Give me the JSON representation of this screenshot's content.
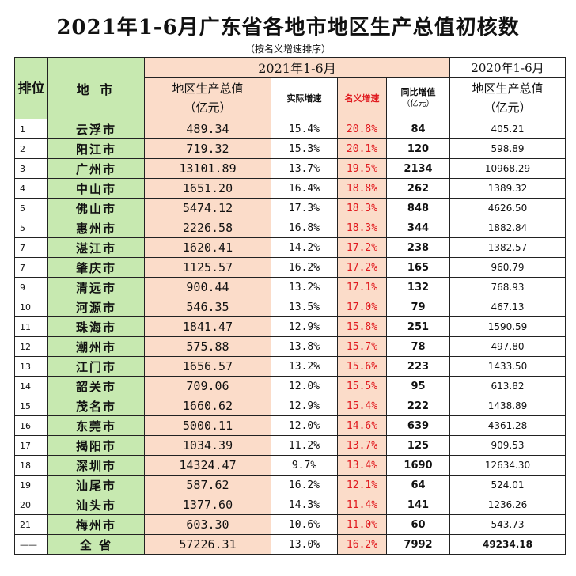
{
  "title": "2021年1-6月广东省各地市地区生产总值初核数",
  "subtitle": "（按名义增速排序）",
  "header": {
    "rank": "排位",
    "city": "地 市",
    "period_2021": "2021年1-6月",
    "period_2020": "2020年1-6月",
    "gdp": "地区生产总值",
    "gdp_unit": "（亿元）",
    "real_growth": "实际增速",
    "nominal_growth": "名义增速",
    "yoy_increase": "同比增值",
    "yoy_unit": "（亿元）",
    "gdp_2020": "地区生产总值",
    "gdp_2020_unit": "（亿元）"
  },
  "rows": [
    {
      "rank": "1",
      "city": "云浮市",
      "gdp": "489.34",
      "real": "15.4%",
      "nominal": "20.8%",
      "inc": "84",
      "gdp2020": "405.21"
    },
    {
      "rank": "2",
      "city": "阳江市",
      "gdp": "719.32",
      "real": "15.3%",
      "nominal": "20.1%",
      "inc": "120",
      "gdp2020": "598.89"
    },
    {
      "rank": "3",
      "city": "广州市",
      "gdp": "13101.89",
      "real": "13.7%",
      "nominal": "19.5%",
      "inc": "2134",
      "gdp2020": "10968.29"
    },
    {
      "rank": "4",
      "city": "中山市",
      "gdp": "1651.20",
      "real": "16.4%",
      "nominal": "18.8%",
      "inc": "262",
      "gdp2020": "1389.32"
    },
    {
      "rank": "5",
      "city": "佛山市",
      "gdp": "5474.12",
      "real": "17.3%",
      "nominal": "18.3%",
      "inc": "848",
      "gdp2020": "4626.50"
    },
    {
      "rank": "5",
      "city": "惠州市",
      "gdp": "2226.58",
      "real": "16.8%",
      "nominal": "18.3%",
      "inc": "344",
      "gdp2020": "1882.84"
    },
    {
      "rank": "7",
      "city": "湛江市",
      "gdp": "1620.41",
      "real": "14.2%",
      "nominal": "17.2%",
      "inc": "238",
      "gdp2020": "1382.57"
    },
    {
      "rank": "7",
      "city": "肇庆市",
      "gdp": "1125.57",
      "real": "16.2%",
      "nominal": "17.2%",
      "inc": "165",
      "gdp2020": "960.79"
    },
    {
      "rank": "9",
      "city": "清远市",
      "gdp": "900.44",
      "real": "13.2%",
      "nominal": "17.1%",
      "inc": "132",
      "gdp2020": "768.93"
    },
    {
      "rank": "10",
      "city": "河源市",
      "gdp": "546.35",
      "real": "13.5%",
      "nominal": "17.0%",
      "inc": "79",
      "gdp2020": "467.13"
    },
    {
      "rank": "11",
      "city": "珠海市",
      "gdp": "1841.47",
      "real": "12.9%",
      "nominal": "15.8%",
      "inc": "251",
      "gdp2020": "1590.59"
    },
    {
      "rank": "12",
      "city": "潮州市",
      "gdp": "575.88",
      "real": "13.8%",
      "nominal": "15.7%",
      "inc": "78",
      "gdp2020": "497.80"
    },
    {
      "rank": "13",
      "city": "江门市",
      "gdp": "1656.57",
      "real": "13.2%",
      "nominal": "15.6%",
      "inc": "223",
      "gdp2020": "1433.50"
    },
    {
      "rank": "14",
      "city": "韶关市",
      "gdp": "709.06",
      "real": "12.0%",
      "nominal": "15.5%",
      "inc": "95",
      "gdp2020": "613.82"
    },
    {
      "rank": "15",
      "city": "茂名市",
      "gdp": "1660.62",
      "real": "12.9%",
      "nominal": "15.4%",
      "inc": "222",
      "gdp2020": "1438.89"
    },
    {
      "rank": "16",
      "city": "东莞市",
      "gdp": "5000.11",
      "real": "12.0%",
      "nominal": "14.6%",
      "inc": "639",
      "gdp2020": "4361.28"
    },
    {
      "rank": "17",
      "city": "揭阳市",
      "gdp": "1034.39",
      "real": "11.2%",
      "nominal": "13.7%",
      "inc": "125",
      "gdp2020": "909.53"
    },
    {
      "rank": "18",
      "city": "深圳市",
      "gdp": "14324.47",
      "real": "9.7%",
      "nominal": "13.4%",
      "inc": "1690",
      "gdp2020": "12634.30"
    },
    {
      "rank": "19",
      "city": "汕尾市",
      "gdp": "587.62",
      "real": "16.2%",
      "nominal": "12.1%",
      "inc": "64",
      "gdp2020": "524.01"
    },
    {
      "rank": "20",
      "city": "汕头市",
      "gdp": "1377.60",
      "real": "14.3%",
      "nominal": "11.4%",
      "inc": "141",
      "gdp2020": "1236.26"
    },
    {
      "rank": "21",
      "city": "梅州市",
      "gdp": "603.30",
      "real": "10.6%",
      "nominal": "11.0%",
      "inc": "60",
      "gdp2020": "543.73"
    }
  ],
  "total": {
    "rank": "——",
    "city": "全 省",
    "gdp": "57226.31",
    "real": "13.0%",
    "nominal": "16.2%",
    "inc": "7992",
    "gdp2020": "49234.18"
  }
}
